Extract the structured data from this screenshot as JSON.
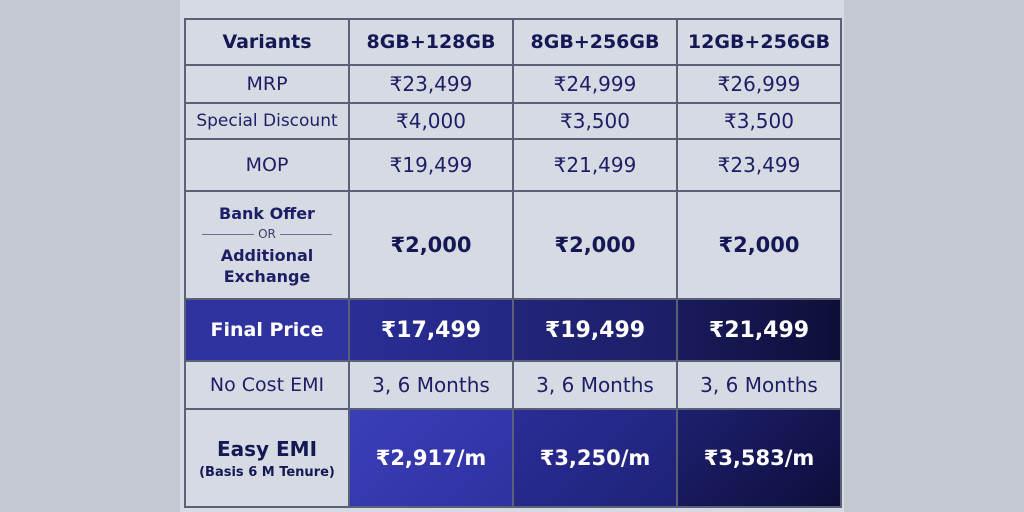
{
  "table": {
    "header": [
      "Variants",
      "8GB+128GB",
      "8GB+256GB",
      "12GB+256GB"
    ],
    "mrp": {
      "label": "MRP",
      "values": [
        "₹23,499",
        "₹24,999",
        "₹26,999"
      ]
    },
    "discount": {
      "label": "Special Discount",
      "values": [
        "₹4,000",
        "₹3,500",
        "₹3,500"
      ]
    },
    "mop": {
      "label": "MOP",
      "values": [
        "₹19,499",
        "₹21,499",
        "₹23,499"
      ]
    },
    "bank": {
      "label_line1": "Bank Offer",
      "or": "OR",
      "label_line2": "Additional",
      "label_line3": "Exchange",
      "values": [
        "₹2,000",
        "₹2,000",
        "₹2,000"
      ]
    },
    "final": {
      "label": "Final Price",
      "values": [
        "₹17,499",
        "₹19,499",
        "₹21,499"
      ]
    },
    "no_cost_emi": {
      "label": "No Cost EMI",
      "values": [
        "3, 6 Months",
        "3, 6 Months",
        "3, 6 Months"
      ]
    },
    "easy_emi": {
      "label": "Easy EMI",
      "sublabel": "(Basis 6 M Tenure)",
      "values": [
        "₹2,917/m",
        "₹3,250/m",
        "₹3,583/m"
      ]
    }
  },
  "colors": {
    "text": "#1c1f66",
    "border": "#5a6075",
    "cell_bg": "#d6dae3",
    "page_bg": "#c3c8d1",
    "highlight_blue": "#2f33a0",
    "highlight_dark": "#0e0f38"
  }
}
